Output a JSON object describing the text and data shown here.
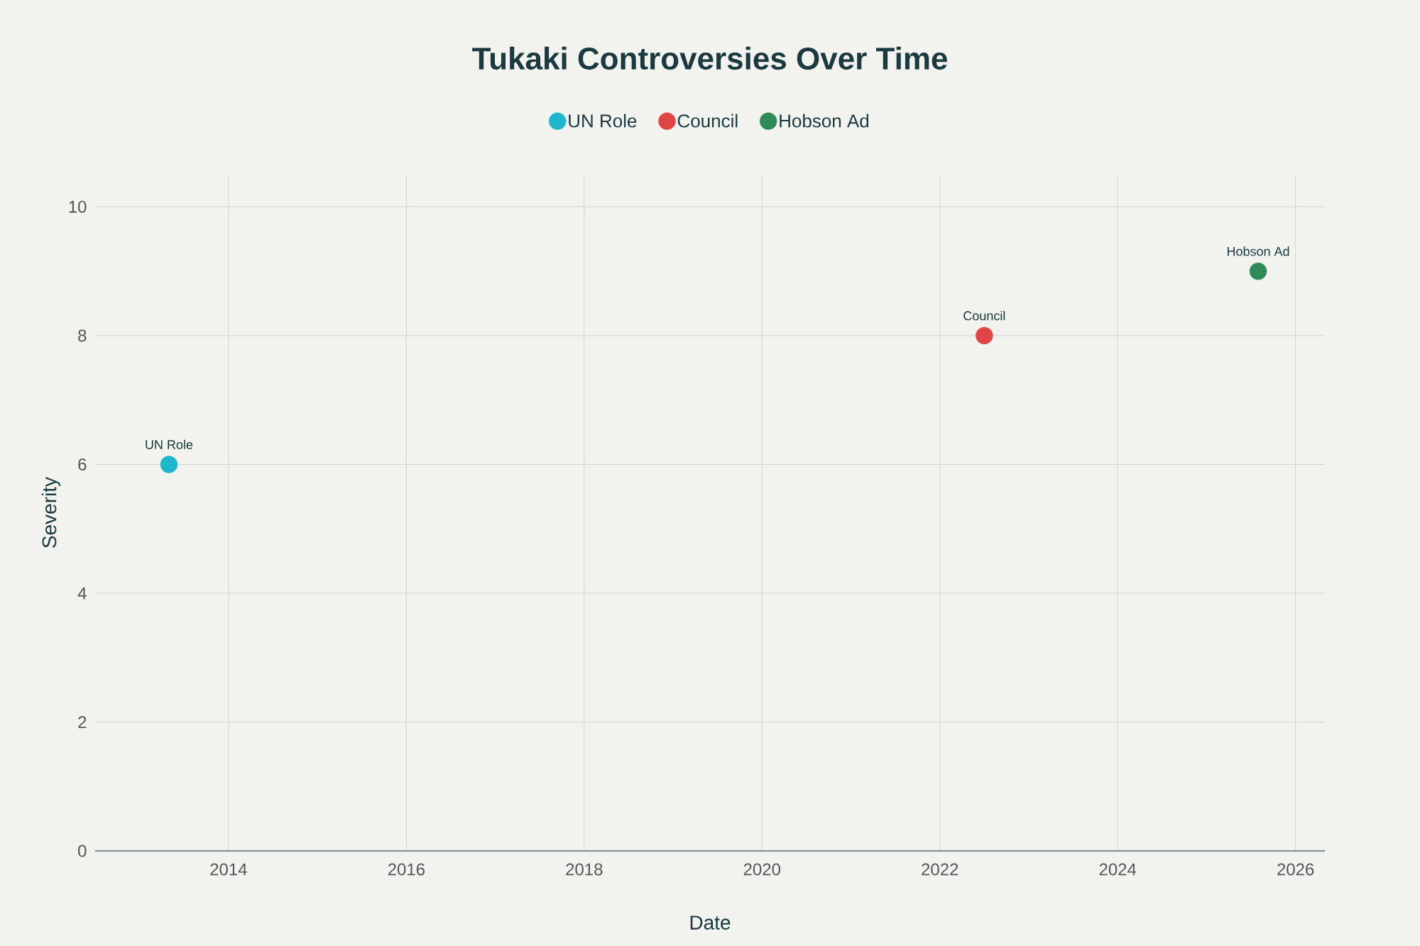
{
  "chart_data": {
    "type": "scatter",
    "title": "Tukaki Controversies Over Time",
    "xlabel": "Date",
    "ylabel": "Severity",
    "series": [
      {
        "name": "UN Role",
        "color": "#1fb5cc",
        "x": [
          "2013-05"
        ],
        "values": [
          6
        ]
      },
      {
        "name": "Council",
        "color": "#e04444",
        "x": [
          "2022-07"
        ],
        "values": [
          8
        ]
      },
      {
        "name": "Hobson Ad",
        "color": "#2e8b57",
        "x": [
          "2025-08"
        ],
        "values": [
          9
        ]
      }
    ],
    "annotations": [
      {
        "text": "UN Role",
        "x": "2013-05",
        "y": 6
      },
      {
        "text": "Council",
        "x": "2022-07",
        "y": 8
      },
      {
        "text": "Hobson Ad",
        "x": "2025-08",
        "y": 9
      }
    ],
    "xlim": [
      "2012-07",
      "2026-05"
    ],
    "xticks": [
      "2014",
      "2016",
      "2018",
      "2020",
      "2022",
      "2024",
      "2026"
    ],
    "ylim": [
      0,
      10.5
    ],
    "yticks": [
      0,
      2,
      4,
      6,
      8,
      10
    ],
    "grid": true,
    "legend": "top",
    "marker": "circle"
  }
}
